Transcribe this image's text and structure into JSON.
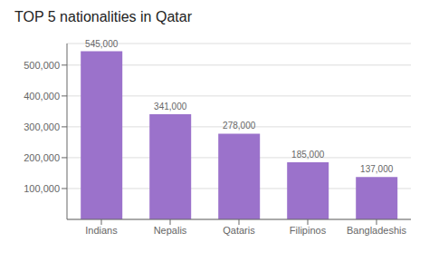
{
  "chart_data": {
    "type": "bar",
    "title": "TOP 5 nationalities in Qatar",
    "categories": [
      "Indians",
      "Nepalis",
      "Qataris",
      "Filipinos",
      "Bangladeshis"
    ],
    "values": [
      545000,
      341000,
      278000,
      185000,
      137000
    ],
    "value_labels": [
      "545,000",
      "341,000",
      "278,000",
      "185,000",
      "137,000"
    ],
    "data_labels": true,
    "color": "#9b72cb",
    "ylim": [
      0,
      570000
    ],
    "yticks": [
      {
        "value": 100000,
        "label": "100,000"
      },
      {
        "value": 200000,
        "label": "200,000"
      },
      {
        "value": 300000,
        "label": "300,000"
      },
      {
        "value": 400000,
        "label": "400,000"
      },
      {
        "value": 500000,
        "label": "500,000"
      }
    ],
    "grid": true
  }
}
